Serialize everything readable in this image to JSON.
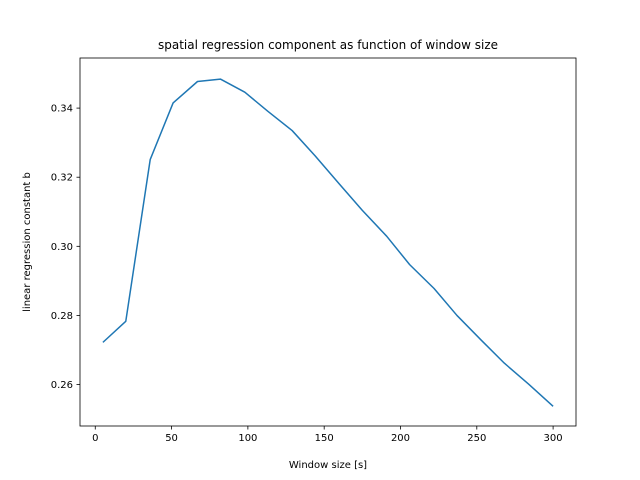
{
  "chart_data": {
    "type": "line",
    "title": "spatial regression component as function of window size",
    "xlabel": "Window size [s]",
    "ylabel": "linear regression constant b",
    "xlim": [
      -10,
      315
    ],
    "ylim": [
      0.248,
      0.3545
    ],
    "xticks": [
      0,
      50,
      100,
      150,
      200,
      250,
      300
    ],
    "yticks": [
      0.26,
      0.28,
      0.3,
      0.32,
      0.34
    ],
    "ytick_labels": [
      "0.26",
      "0.28",
      "0.30",
      "0.32",
      "0.34"
    ],
    "grid": false,
    "color": "#1f77b4",
    "series": [
      {
        "x": [
          5,
          20,
          36,
          51,
          67,
          82,
          98,
          113,
          129,
          144,
          160,
          175,
          191,
          206,
          222,
          237,
          253,
          268,
          284,
          300
        ],
        "y": [
          0.2722,
          0.2783,
          0.3251,
          0.3415,
          0.3477,
          0.3484,
          0.3446,
          0.3391,
          0.3335,
          0.3262,
          0.318,
          0.3104,
          0.3029,
          0.2947,
          0.2878,
          0.28,
          0.2728,
          0.2662,
          0.2601,
          0.2537
        ]
      }
    ]
  }
}
